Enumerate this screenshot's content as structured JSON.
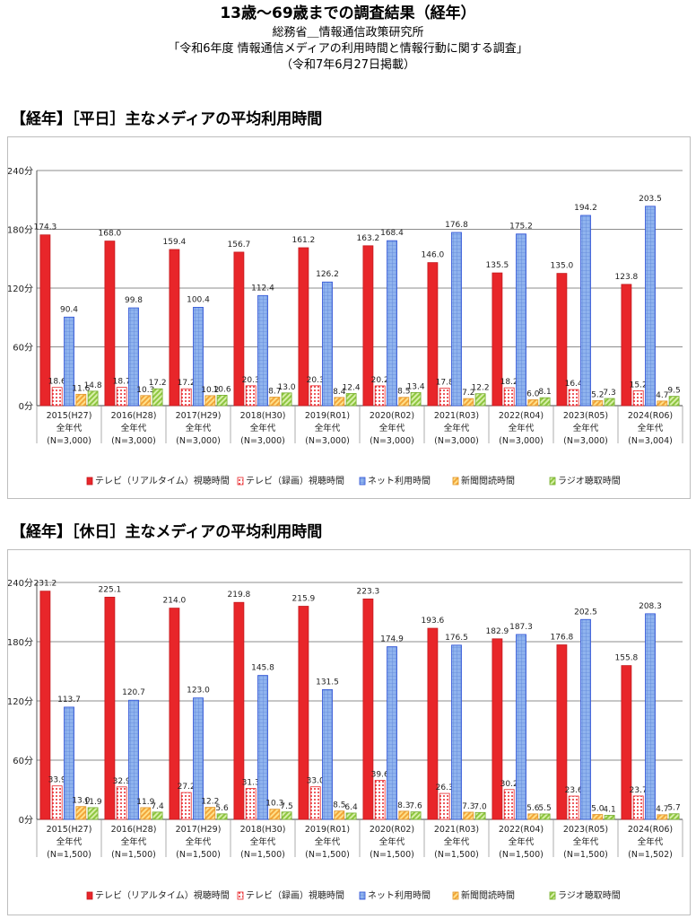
{
  "header": {
    "title": "13歳～69歳までの調査結果（経年）",
    "line1": "総務省＿情報通信政策研究所",
    "line2": "「令和6年度 情報通信メディアの利用時間と情報行動に関する調査」",
    "line3": "（令和7年6月27日掲載）"
  },
  "legend": [
    {
      "name": "テレビ（リアルタイム）視聴時間",
      "color": "#e8262a",
      "pattern": "solid"
    },
    {
      "name": "テレビ（録画）視聴時間",
      "color": "#e8262a",
      "pattern": "dots"
    },
    {
      "name": "ネット利用時間",
      "color": "#2b4fd6",
      "pattern": "grid"
    },
    {
      "name": "新聞閲読時間",
      "color": "#f2a63a",
      "pattern": "stripe"
    },
    {
      "name": "ラジオ聴取時間",
      "color": "#8ec63f",
      "pattern": "stripe"
    }
  ],
  "chart_data": [
    {
      "type": "bar",
      "title": "【経年】［平日］主なメディアの平均利用時間",
      "ylim": [
        0,
        240
      ],
      "y_ticks": [
        "0分",
        "60分",
        "120分",
        "180分",
        "240分"
      ],
      "grid": true,
      "legend_position": "bottom",
      "categories": [
        {
          "year": "2015(H27)",
          "group": "全年代",
          "n": "(N=3,000)"
        },
        {
          "year": "2016(H28)",
          "group": "全年代",
          "n": "(N=3,000)"
        },
        {
          "year": "2017(H29)",
          "group": "全年代",
          "n": "(N=3,000)"
        },
        {
          "year": "2018(H30)",
          "group": "全年代",
          "n": "(N=3,000)"
        },
        {
          "year": "2019(R01)",
          "group": "全年代",
          "n": "(N=3,000)"
        },
        {
          "year": "2020(R02)",
          "group": "全年代",
          "n": "(N=3,000)"
        },
        {
          "year": "2021(R03)",
          "group": "全年代",
          "n": "(N=3,000)"
        },
        {
          "year": "2022(R04)",
          "group": "全年代",
          "n": "(N=3,000)"
        },
        {
          "year": "2023(R05)",
          "group": "全年代",
          "n": "(N=3,000)"
        },
        {
          "year": "2024(R06)",
          "group": "全年代",
          "n": "(N=3,004)"
        }
      ],
      "series": [
        {
          "name": "テレビ（リアルタイム）視聴時間",
          "values": [
            174.3,
            168.0,
            159.4,
            156.7,
            161.2,
            163.2,
            146.0,
            135.5,
            135.0,
            123.8
          ]
        },
        {
          "name": "テレビ（録画）視聴時間",
          "values": [
            18.6,
            18.7,
            17.2,
            20.3,
            20.3,
            20.2,
            17.8,
            18.2,
            16.4,
            15.2
          ]
        },
        {
          "name": "ネット利用時間",
          "values": [
            90.4,
            99.8,
            100.4,
            112.4,
            126.2,
            168.4,
            176.8,
            175.2,
            194.2,
            203.5
          ]
        },
        {
          "name": "新聞閲読時間",
          "values": [
            11.6,
            10.3,
            10.2,
            8.7,
            8.4,
            8.5,
            7.2,
            6.0,
            5.2,
            4.7
          ]
        },
        {
          "name": "ラジオ聴取時間",
          "values": [
            14.8,
            17.2,
            10.6,
            13.0,
            12.4,
            13.4,
            12.2,
            8.1,
            7.3,
            9.5
          ]
        }
      ],
      "data_labels": [
        [
          "174.3",
          "168.0",
          "159.4",
          "156.7",
          "161.2",
          "163.2",
          "146.0",
          "135.5",
          "135.0",
          "123.8"
        ],
        [
          "18.6",
          "18.7",
          "17.2",
          "20.3",
          "20.3",
          "20.2",
          "17.8",
          "18.2",
          "16.4",
          "15.2"
        ],
        [
          "90.4",
          "99.8",
          "100.4",
          "112.4",
          "126.2",
          "168.4",
          "176.8",
          "175.2",
          "194.2",
          "203.5"
        ],
        [
          "11.6",
          "10.3",
          "10.2",
          "8.7",
          "8.4",
          "8.5",
          "7.2",
          "6.0",
          "5.2",
          "4.7"
        ],
        [
          "14.8",
          "17.2",
          "10.6",
          "13.0",
          "12.4",
          "13.4",
          "12.2",
          "8.1",
          "7.3",
          "9.5"
        ]
      ]
    },
    {
      "type": "bar",
      "title": "【経年】［休日］主なメディアの平均利用時間",
      "ylim": [
        0,
        240
      ],
      "y_ticks": [
        "0分",
        "60分",
        "120分",
        "180分",
        "240分"
      ],
      "grid": true,
      "legend_position": "bottom",
      "categories": [
        {
          "year": "2015(H27)",
          "group": "全年代",
          "n": "(N=1,500)"
        },
        {
          "year": "2016(H28)",
          "group": "全年代",
          "n": "(N=1,500)"
        },
        {
          "year": "2017(H29)",
          "group": "全年代",
          "n": "(N=1,500)"
        },
        {
          "year": "2018(H30)",
          "group": "全年代",
          "n": "(N=1,500)"
        },
        {
          "year": "2019(R01)",
          "group": "全年代",
          "n": "(N=1,500)"
        },
        {
          "year": "2020(R02)",
          "group": "全年代",
          "n": "(N=1,500)"
        },
        {
          "year": "2021(R03)",
          "group": "全年代",
          "n": "(N=1,500)"
        },
        {
          "year": "2022(R04)",
          "group": "全年代",
          "n": "(N=1,500)"
        },
        {
          "year": "2023(R05)",
          "group": "全年代",
          "n": "(N=1,500)"
        },
        {
          "year": "2024(R06)",
          "group": "全年代",
          "n": "(N=1,502)"
        }
      ],
      "series": [
        {
          "name": "テレビ（リアルタイム）視聴時間",
          "values": [
            231.2,
            225.1,
            214.0,
            219.8,
            215.9,
            223.3,
            193.6,
            182.9,
            176.8,
            155.8
          ]
        },
        {
          "name": "テレビ（録画）視聴時間",
          "values": [
            33.9,
            32.9,
            27.2,
            31.3,
            33.0,
            39.6,
            26.3,
            30.2,
            23.6,
            23.7
          ]
        },
        {
          "name": "ネット利用時間",
          "values": [
            113.7,
            120.7,
            123.0,
            145.8,
            131.5,
            174.9,
            176.5,
            187.3,
            202.5,
            208.3
          ]
        },
        {
          "name": "新聞閲読時間",
          "values": [
            13.0,
            11.9,
            12.2,
            10.3,
            8.5,
            8.3,
            7.3,
            5.6,
            5.0,
            4.7
          ]
        },
        {
          "name": "ラジオ聴取時間",
          "values": [
            11.9,
            7.4,
            5.6,
            7.5,
            6.4,
            7.6,
            7.0,
            5.5,
            4.1,
            5.7
          ]
        }
      ],
      "data_labels": [
        [
          "231.2",
          "225.1",
          "214.0",
          "219.8",
          "215.9",
          "223.3",
          "193.6",
          "182.9",
          "176.8",
          "155.8"
        ],
        [
          "33.9",
          "32.9",
          "27.2",
          "31.3",
          "33.0",
          "39.6",
          "26.3",
          "30.2",
          "23.6",
          "23.7"
        ],
        [
          "113.7",
          "120.7",
          "123.0",
          "145.8",
          "131.5",
          "174.9",
          "176.5",
          "187.3",
          "202.5",
          "208.3"
        ],
        [
          "13.0",
          "11.9",
          "12.2",
          "10.3",
          "8.5",
          "8.3",
          "7.3",
          "5.6",
          "5.0",
          "4.7"
        ],
        [
          "11.9",
          "7.4",
          "5.6",
          "7.5",
          "6.4",
          "7.6",
          "7.0",
          "5.5",
          "4.1",
          "5.7"
        ]
      ]
    }
  ]
}
